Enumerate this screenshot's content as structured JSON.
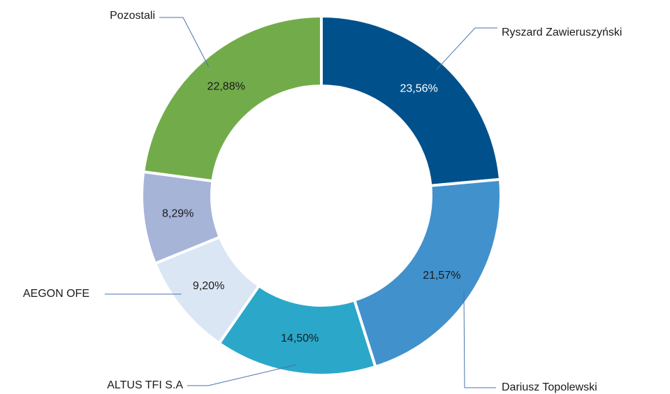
{
  "chart_data": {
    "type": "donut",
    "categories": [
      "Ryszard Zawieruszyński",
      "Dariusz Topolewski",
      "ALTUS TFI S.A",
      "AEGON OFE",
      null,
      "Pozostali"
    ],
    "values": [
      23.56,
      21.57,
      14.5,
      9.2,
      8.29,
      22.88
    ],
    "value_labels": [
      "23,56%",
      "21,57%",
      "14,50%",
      "9,20%",
      "8,29%",
      "22,88%"
    ],
    "colors": [
      "#00518b",
      "#4191cd",
      "#2ba7c9",
      "#dae6f4",
      "#a6b4d8",
      "#72ac4a"
    ]
  }
}
